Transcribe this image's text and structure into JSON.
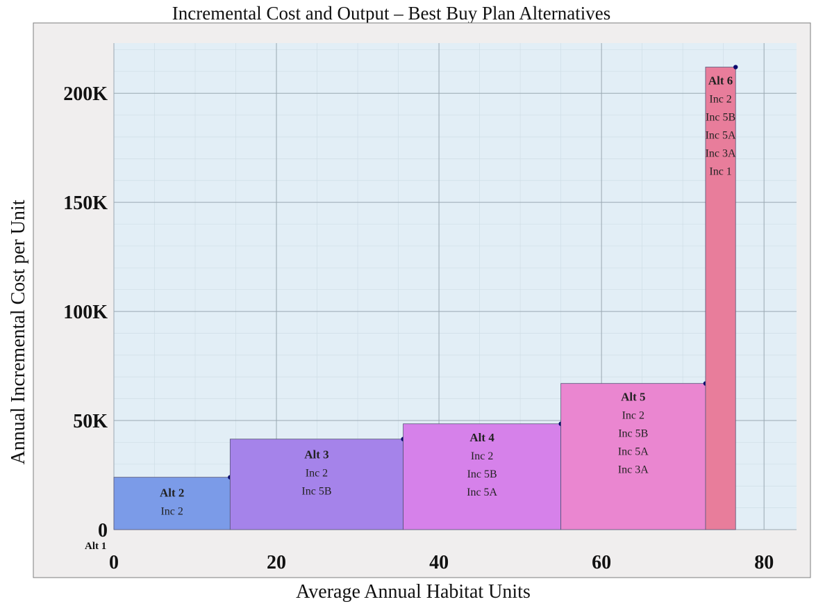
{
  "chart_data": {
    "type": "bar",
    "title": "Incremental Cost and Output – Best Buy Plan Alternatives",
    "xlabel": "Average Annual Habitat Units",
    "ylabel": "Annual Incremental Cost per Unit",
    "xlim": [
      0,
      84
    ],
    "ylim": [
      0,
      223000
    ],
    "x_ticks": [
      {
        "value": 0,
        "label": "0"
      },
      {
        "value": 20,
        "label": "20"
      },
      {
        "value": 40,
        "label": "40"
      },
      {
        "value": 60,
        "label": "60"
      },
      {
        "value": 80,
        "label": "80"
      }
    ],
    "y_ticks": [
      {
        "value": 0,
        "label": "0"
      },
      {
        "value": 50000,
        "label": "50K"
      },
      {
        "value": 100000,
        "label": "100K"
      },
      {
        "value": 150000,
        "label": "150K"
      },
      {
        "value": 200000,
        "label": "200K"
      }
    ],
    "grid": true,
    "origin_label": "Alt 1",
    "bars": [
      {
        "name": "Alt 2",
        "x_start": 0,
        "x_end": 14.3,
        "value": 24000,
        "increments": [
          "Inc 2"
        ],
        "color": "#7b9be8"
      },
      {
        "name": "Alt 3",
        "x_start": 14.3,
        "x_end": 35.6,
        "value": 41500,
        "increments": [
          "Inc 2",
          "Inc 5B"
        ],
        "color": "#a583ea"
      },
      {
        "name": "Alt 4",
        "x_start": 35.6,
        "x_end": 55,
        "value": 48500,
        "increments": [
          "Inc 2",
          "Inc 5B",
          "Inc 5A"
        ],
        "color": "#d681ea"
      },
      {
        "name": "Alt 5",
        "x_start": 55,
        "x_end": 72.8,
        "value": 67000,
        "increments": [
          "Inc 2",
          "Inc 5B",
          "Inc 5A",
          "Inc 3A"
        ],
        "color": "#ea86d0"
      },
      {
        "name": "Alt 6",
        "x_start": 72.8,
        "x_end": 76.5,
        "value": 212000,
        "increments": [
          "Inc 2",
          "Inc 5B",
          "Inc 5A",
          "Inc 3A",
          "Inc 1"
        ],
        "color": "#e87d9b"
      }
    ],
    "colors": {
      "plot_background": "#e2eef6",
      "frame_background": "#f0eeee",
      "grid_major": "#9aa8b2",
      "grid_minor": "#cfdde6",
      "marker": "#0a0a6e"
    }
  }
}
